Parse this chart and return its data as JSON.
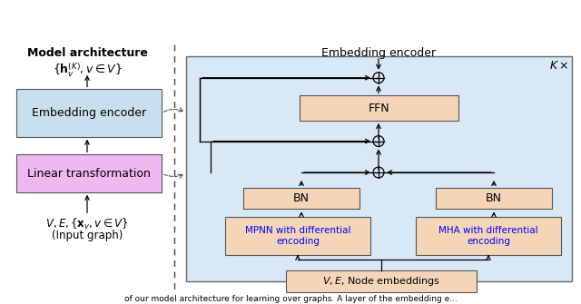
{
  "title_left": "Model architecture",
  "title_right": "Embedding encoder",
  "label_kx": "K×",
  "left_box1_text": "Embedding encoder",
  "left_box1_color": "#c8dff0",
  "left_box2_text": "Linear transformation",
  "left_box2_color": "#f0b8f0",
  "box_color_orange": "#f5d5b8",
  "right_panel_color": "#d8e8f5",
  "bg_color": "#ffffff",
  "separator_color": "#444444",
  "arrow_color": "#222222",
  "skip_color": "#333333"
}
